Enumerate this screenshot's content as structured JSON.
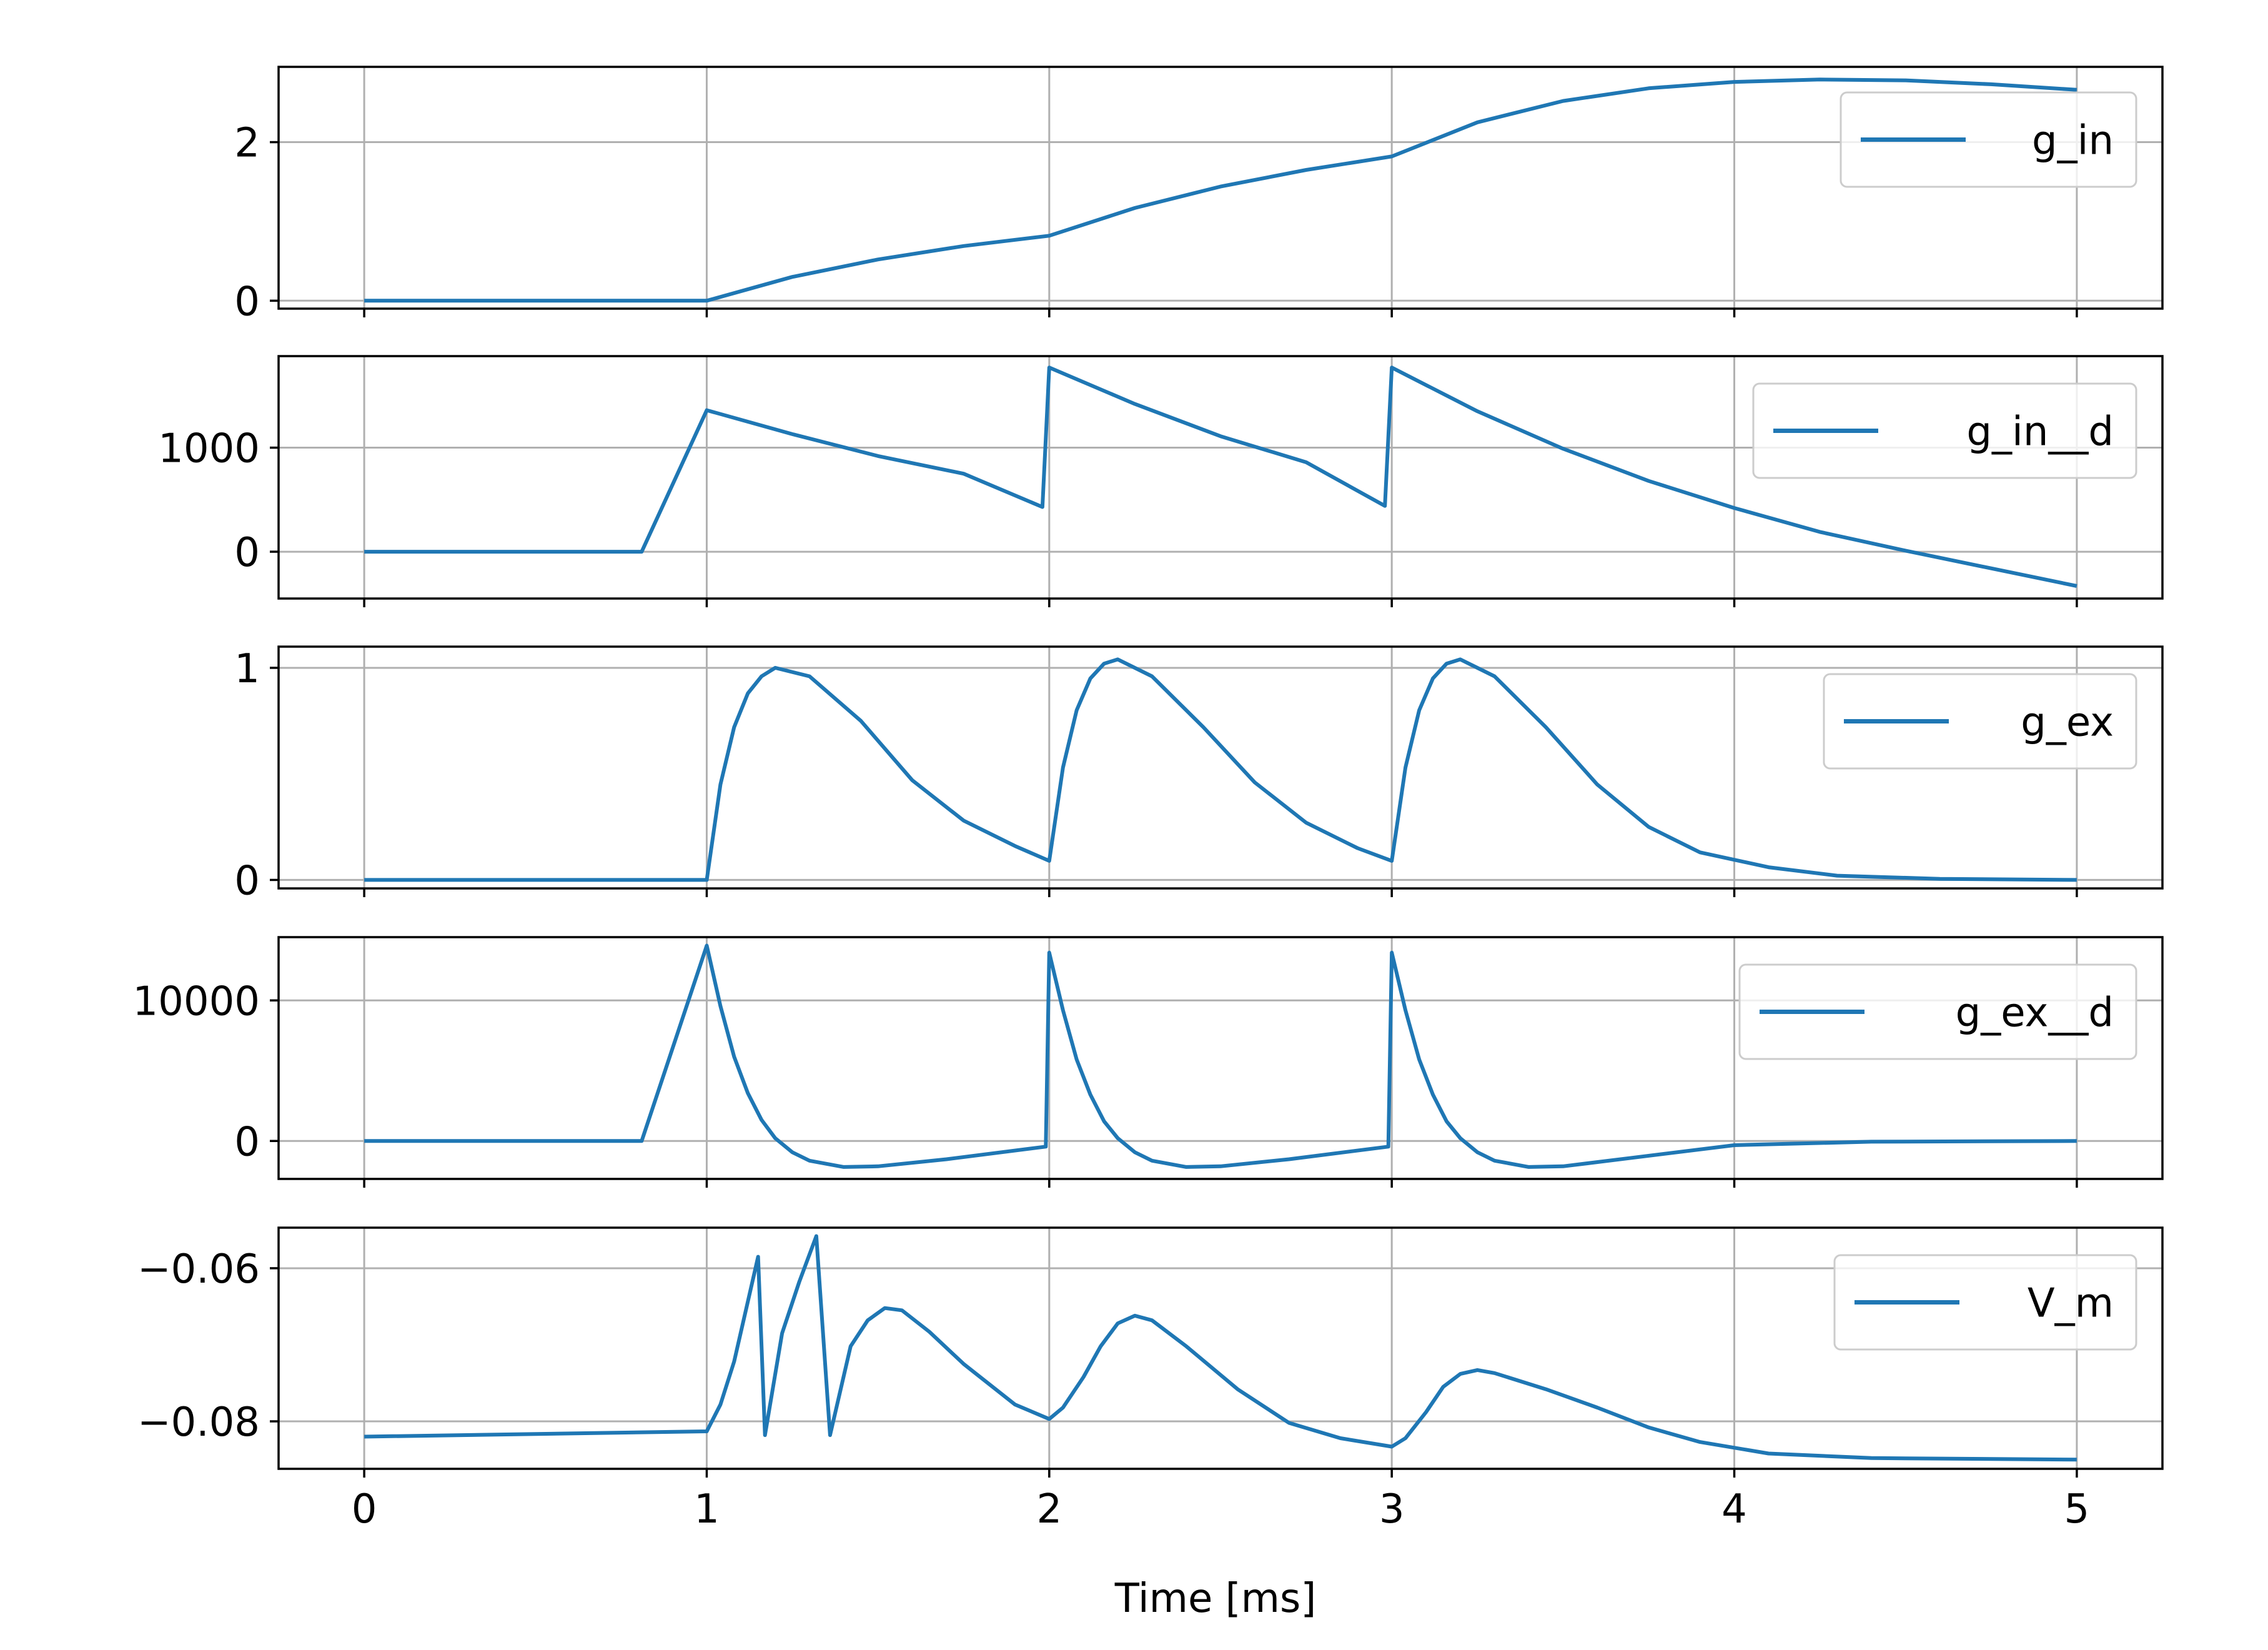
{
  "colors": {
    "series": "#1f77b4",
    "grid": "#b0b0b0",
    "axes": "#000000"
  },
  "chart_data": [
    {
      "type": "line",
      "legend": "g_in",
      "legend_position": "upper right",
      "grid": true,
      "xlim": [
        -0.25,
        5.25
      ],
      "ylim": [
        -0.1,
        2.95
      ],
      "xticks": [
        0,
        1,
        2,
        3,
        4,
        5
      ],
      "yticks": [
        0,
        2
      ],
      "ytick_labels": [
        "0",
        "2"
      ],
      "series": [
        {
          "name": "g_in",
          "x": [
            0,
            1,
            1.25,
            1.5,
            1.75,
            2,
            2.25,
            2.5,
            2.75,
            3,
            3.25,
            3.5,
            3.75,
            4,
            4.25,
            4.5,
            4.75,
            5
          ],
          "y": [
            0,
            0,
            0.3,
            0.52,
            0.69,
            0.82,
            1.17,
            1.44,
            1.65,
            1.82,
            2.25,
            2.52,
            2.68,
            2.76,
            2.79,
            2.78,
            2.73,
            2.66
          ]
        }
      ]
    },
    {
      "type": "line",
      "legend": "g_in__d",
      "legend_position": "upper right",
      "grid": true,
      "xlim": [
        -0.25,
        5.25
      ],
      "ylim": [
        -450,
        1880
      ],
      "xticks": [
        0,
        1,
        2,
        3,
        4,
        5
      ],
      "yticks": [
        0,
        1000
      ],
      "ytick_labels": [
        "0",
        "1000"
      ],
      "series": [
        {
          "name": "g_in__d",
          "x": [
            0,
            0.81,
            1,
            1.25,
            1.5,
            1.75,
            1.98,
            2,
            2.25,
            2.5,
            2.75,
            2.98,
            3,
            3.25,
            3.5,
            3.75,
            4,
            4.25,
            4.5,
            4.75,
            5
          ],
          "y": [
            0,
            0,
            1360,
            1130,
            920,
            750,
            430,
            1770,
            1420,
            1110,
            860,
            440,
            1770,
            1350,
            990,
            680,
            420,
            190,
            10,
            -160,
            -330
          ]
        }
      ]
    },
    {
      "type": "line",
      "legend": "g_ex",
      "legend_position": "upper right",
      "grid": true,
      "xlim": [
        -0.25,
        5.25
      ],
      "ylim": [
        -0.04,
        1.1
      ],
      "xticks": [
        0,
        1,
        2,
        3,
        4,
        5
      ],
      "yticks": [
        0,
        1
      ],
      "ytick_labels": [
        "0",
        "1"
      ],
      "series": [
        {
          "name": "g_ex",
          "x": [
            0,
            1,
            1.04,
            1.08,
            1.12,
            1.16,
            1.2,
            1.3,
            1.45,
            1.6,
            1.75,
            1.9,
            2,
            2.04,
            2.08,
            2.12,
            2.16,
            2.2,
            2.3,
            2.45,
            2.6,
            2.75,
            2.9,
            3,
            3.04,
            3.08,
            3.12,
            3.16,
            3.2,
            3.3,
            3.45,
            3.6,
            3.75,
            3.9,
            4.1,
            4.3,
            4.6,
            5
          ],
          "y": [
            0,
            0,
            0.45,
            0.72,
            0.88,
            0.96,
            1.0,
            0.96,
            0.75,
            0.47,
            0.28,
            0.16,
            0.09,
            0.53,
            0.8,
            0.95,
            1.02,
            1.04,
            0.96,
            0.72,
            0.46,
            0.27,
            0.15,
            0.09,
            0.53,
            0.8,
            0.95,
            1.02,
            1.04,
            0.96,
            0.72,
            0.45,
            0.25,
            0.13,
            0.06,
            0.02,
            0.005,
            0
          ]
        }
      ]
    },
    {
      "type": "line",
      "legend": "g_ex__d",
      "legend_position": "upper right",
      "grid": true,
      "xlim": [
        -0.25,
        5.25
      ],
      "ylim": [
        -2700,
        14500
      ],
      "xticks": [
        0,
        1,
        2,
        3,
        4,
        5
      ],
      "yticks": [
        0,
        10000
      ],
      "ytick_labels": [
        "0",
        "10000"
      ],
      "series": [
        {
          "name": "g_ex__d",
          "x": [
            0,
            0.81,
            1,
            1.04,
            1.08,
            1.12,
            1.16,
            1.2,
            1.25,
            1.3,
            1.4,
            1.5,
            1.7,
            1.99,
            2,
            2.04,
            2.08,
            2.12,
            2.16,
            2.2,
            2.25,
            2.3,
            2.4,
            2.5,
            2.7,
            2.99,
            3,
            3.04,
            3.08,
            3.12,
            3.16,
            3.2,
            3.25,
            3.3,
            3.4,
            3.5,
            3.7,
            4,
            4.4,
            5
          ],
          "y": [
            0,
            0,
            13900,
            9600,
            6000,
            3400,
            1500,
            200,
            -800,
            -1400,
            -1850,
            -1800,
            -1300,
            -400,
            13400,
            9300,
            5800,
            3300,
            1400,
            200,
            -800,
            -1400,
            -1850,
            -1800,
            -1300,
            -400,
            13400,
            9300,
            5800,
            3300,
            1400,
            200,
            -800,
            -1400,
            -1850,
            -1800,
            -1200,
            -300,
            -50,
            0
          ]
        }
      ]
    },
    {
      "type": "line",
      "legend": "V_m",
      "legend_position": "upper right",
      "grid": true,
      "xlabel": "Time [ms]",
      "xlim": [
        -0.25,
        5.25
      ],
      "ylim": [
        -0.0862,
        -0.0547
      ],
      "xticks": [
        0,
        1,
        2,
        3,
        4,
        5
      ],
      "xtick_labels": [
        "0",
        "1",
        "2",
        "3",
        "4",
        "5"
      ],
      "yticks": [
        -0.08,
        -0.06
      ],
      "ytick_labels": [
        "−0.08",
        "−0.06"
      ],
      "series": [
        {
          "name": "V_m",
          "x": [
            0,
            1,
            1.04,
            1.08,
            1.15,
            1.17,
            1.22,
            1.27,
            1.32,
            1.36,
            1.42,
            1.47,
            1.52,
            1.57,
            1.65,
            1.75,
            1.9,
            2,
            2.04,
            2.1,
            2.15,
            2.2,
            2.25,
            2.3,
            2.4,
            2.55,
            2.7,
            2.85,
            3,
            3.04,
            3.1,
            3.15,
            3.2,
            3.25,
            3.3,
            3.45,
            3.6,
            3.75,
            3.9,
            4.1,
            4.4,
            5
          ],
          "y": [
            -0.082,
            -0.0813,
            -0.0778,
            -0.0722,
            -0.0585,
            -0.0818,
            -0.0685,
            -0.0618,
            -0.0558,
            -0.0818,
            -0.0702,
            -0.0668,
            -0.0652,
            -0.0655,
            -0.0683,
            -0.0725,
            -0.0778,
            -0.0797,
            -0.0782,
            -0.0742,
            -0.0702,
            -0.0672,
            -0.0662,
            -0.0668,
            -0.0702,
            -0.0758,
            -0.0802,
            -0.0822,
            -0.0833,
            -0.0822,
            -0.0788,
            -0.0755,
            -0.0738,
            -0.0733,
            -0.0737,
            -0.0758,
            -0.0782,
            -0.0808,
            -0.0827,
            -0.0842,
            -0.0848,
            -0.085
          ]
        }
      ]
    }
  ]
}
